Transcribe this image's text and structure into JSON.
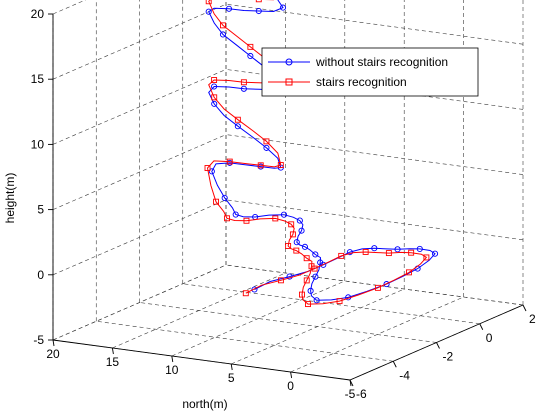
{
  "chart_data": {
    "type": "line3d",
    "title": "",
    "xlabel": "",
    "ylabel": "north(m)",
    "zlabel": "height(m)",
    "xlim": [
      -6,
      2
    ],
    "ylim": [
      -5,
      20
    ],
    "zlim": [
      -5,
      20
    ],
    "x_ticks": [
      "-6",
      "-4",
      "-2",
      "0",
      "2"
    ],
    "y_ticks": [
      "20",
      "15",
      "10",
      "5",
      "0",
      "-5"
    ],
    "z_ticks": [
      "20",
      "15",
      "10",
      "5",
      "0",
      "-5"
    ],
    "grid": true,
    "legend_position": "top-right",
    "series": [
      {
        "name": "without stairs recognition",
        "color": "#0000ff",
        "marker": "circle",
        "points": [
          [
            -5.2,
            4.5,
            0.2
          ],
          [
            -4.8,
            3.9,
            0.6
          ],
          [
            -4.4,
            3.0,
            0.8
          ],
          [
            -4.0,
            2.2,
            1.0
          ],
          [
            -3.5,
            1.8,
            1.2
          ],
          [
            -3.0,
            1.5,
            1.4
          ],
          [
            -2.6,
            1.2,
            1.6
          ],
          [
            -2.2,
            0.9,
            1.6
          ],
          [
            -1.8,
            0.6,
            1.4
          ],
          [
            -1.4,
            0.3,
            1.1
          ],
          [
            -1.0,
            0.1,
            0.8
          ],
          [
            -0.6,
            -0.2,
            0.6
          ],
          [
            -0.3,
            -0.5,
            0.4
          ],
          [
            -0.1,
            -1.0,
            0.2
          ],
          [
            -0.2,
            -1.6,
            0.1
          ],
          [
            -0.8,
            -2.2,
            0.1
          ],
          [
            -1.5,
            -2.5,
            0.0
          ],
          [
            -2.3,
            -2.7,
            0.0
          ],
          [
            -3.1,
            -2.8,
            0.0
          ],
          [
            -3.9,
            -2.6,
            0.0
          ],
          [
            -4.6,
            -2.3,
            0.0
          ],
          [
            -5.1,
            -1.8,
            0.1
          ],
          [
            -5.4,
            -1.1,
            0.2
          ],
          [
            -5.2,
            -0.3,
            0.3
          ],
          [
            -4.8,
            0.5,
            0.3
          ],
          [
            -4.3,
            1.3,
            0.4
          ],
          [
            -3.7,
            2.1,
            0.4
          ],
          [
            -3.1,
            2.9,
            0.4
          ],
          [
            -2.6,
            3.7,
            0.5
          ],
          [
            -2.2,
            4.4,
            0.5
          ],
          [
            -2.0,
            5.2,
            0.5
          ],
          [
            -1.8,
            6.0,
            0.6
          ],
          [
            -1.6,
            6.8,
            0.6
          ],
          [
            -1.4,
            7.6,
            0.5
          ],
          [
            -1.1,
            8.4,
            0.4
          ],
          [
            -0.6,
            9.2,
            0.4
          ],
          [
            0.0,
            10.0,
            0.3
          ],
          [
            0.5,
            10.8,
            0.3
          ],
          [
            0.8,
            11.6,
            0.3
          ],
          [
            1.0,
            12.5,
            0.3
          ],
          [
            1.0,
            13.3,
            0.4
          ],
          [
            0.8,
            14.2,
            0.4
          ],
          [
            0.6,
            15.0,
            0.3
          ],
          [
            0.6,
            16.0,
            0.2
          ],
          [
            0.8,
            17.0,
            0.1
          ],
          [
            1.2,
            18.0,
            0.2
          ],
          [
            1.5,
            19.2,
            0.6
          ],
          [
            1.6,
            20.0,
            1.4
          ],
          [
            1.4,
            20.1,
            2.6
          ],
          [
            1.1,
            19.2,
            3.5
          ],
          [
            0.8,
            17.5,
            4.0
          ],
          [
            0.5,
            15.5,
            4.3
          ],
          [
            0.2,
            13.8,
            4.6
          ],
          [
            -0.1,
            12.1,
            4.9
          ],
          [
            -0.3,
            11.2,
            5.2
          ],
          [
            0.0,
            12.0,
            5.6
          ],
          [
            0.3,
            13.5,
            6.0
          ],
          [
            0.6,
            15.2,
            6.4
          ],
          [
            0.9,
            17.0,
            6.8
          ],
          [
            1.2,
            18.7,
            7.2
          ],
          [
            1.4,
            19.9,
            7.8
          ],
          [
            1.2,
            20.0,
            8.8
          ],
          [
            0.9,
            19.0,
            9.6
          ],
          [
            0.6,
            17.2,
            10.0
          ],
          [
            0.3,
            15.4,
            10.3
          ],
          [
            0.0,
            13.6,
            10.7
          ],
          [
            -0.2,
            11.9,
            11.0
          ],
          [
            -0.3,
            11.1,
            11.4
          ],
          [
            0.0,
            12.1,
            11.8
          ],
          [
            0.3,
            13.7,
            12.2
          ],
          [
            0.6,
            15.4,
            12.6
          ],
          [
            0.9,
            17.1,
            13.0
          ],
          [
            1.2,
            18.8,
            13.4
          ],
          [
            1.4,
            19.9,
            14.0
          ],
          [
            1.2,
            20.0,
            15.0
          ],
          [
            0.9,
            19.0,
            15.6
          ],
          [
            0.6,
            17.2,
            16.0
          ],
          [
            0.3,
            15.4,
            16.3
          ],
          [
            0.0,
            13.6,
            16.7
          ],
          [
            -0.2,
            12.0,
            17.0
          ],
          [
            -0.2,
            11.2,
            17.4
          ],
          [
            0.1,
            12.3,
            17.8
          ],
          [
            0.4,
            13.9,
            18.1
          ],
          [
            0.7,
            15.5,
            18.4
          ],
          [
            1.0,
            17.2,
            18.6
          ]
        ]
      },
      {
        "name": "stairs recognition",
        "color": "#ff0000",
        "marker": "square",
        "points": [
          [
            -5.6,
            4.5,
            0.2
          ],
          [
            -5.2,
            3.9,
            0.6
          ],
          [
            -4.8,
            3.0,
            0.8
          ],
          [
            -4.4,
            2.2,
            1.0
          ],
          [
            -3.9,
            1.8,
            1.2
          ],
          [
            -3.4,
            1.5,
            1.4
          ],
          [
            -3.0,
            1.2,
            1.6
          ],
          [
            -2.6,
            0.9,
            1.6
          ],
          [
            -2.2,
            0.6,
            1.4
          ],
          [
            -1.8,
            0.3,
            1.1
          ],
          [
            -1.4,
            0.1,
            0.8
          ],
          [
            -1.0,
            -0.2,
            0.6
          ],
          [
            -0.7,
            -0.5,
            0.4
          ],
          [
            -0.5,
            -1.0,
            0.2
          ],
          [
            -0.6,
            -1.6,
            0.1
          ],
          [
            -1.2,
            -2.2,
            0.1
          ],
          [
            -1.9,
            -2.5,
            0.0
          ],
          [
            -2.7,
            -2.7,
            0.0
          ],
          [
            -3.5,
            -2.8,
            0.0
          ],
          [
            -4.3,
            -2.6,
            0.0
          ],
          [
            -5.0,
            -2.3,
            0.0
          ],
          [
            -5.5,
            -1.8,
            0.1
          ],
          [
            -5.8,
            -1.1,
            0.2
          ],
          [
            -5.6,
            -0.3,
            0.3
          ],
          [
            -5.2,
            0.5,
            0.3
          ],
          [
            -4.7,
            1.3,
            0.4
          ],
          [
            -4.1,
            2.1,
            0.4
          ],
          [
            -3.5,
            2.9,
            0.4
          ],
          [
            -3.0,
            3.7,
            0.5
          ],
          [
            -2.6,
            4.4,
            0.5
          ],
          [
            -2.4,
            5.2,
            0.5
          ],
          [
            -2.2,
            6.0,
            0.6
          ],
          [
            -2.0,
            6.8,
            0.6
          ],
          [
            -1.8,
            7.6,
            0.5
          ],
          [
            -1.5,
            8.4,
            0.4
          ],
          [
            -1.0,
            9.2,
            0.4
          ],
          [
            -0.4,
            10.0,
            0.3
          ],
          [
            0.1,
            10.8,
            0.3
          ],
          [
            0.4,
            11.6,
            0.3
          ],
          [
            0.6,
            12.5,
            0.3
          ],
          [
            0.6,
            13.3,
            0.4
          ],
          [
            0.4,
            14.2,
            0.4
          ],
          [
            0.2,
            15.0,
            0.3
          ],
          [
            0.2,
            16.0,
            0.2
          ],
          [
            0.4,
            17.0,
            0.1
          ],
          [
            0.8,
            18.0,
            0.2
          ],
          [
            1.1,
            19.2,
            0.6
          ],
          [
            1.3,
            20.0,
            1.6
          ],
          [
            1.2,
            20.1,
            3.0
          ],
          [
            1.0,
            19.2,
            3.8
          ],
          [
            0.8,
            17.5,
            4.1
          ],
          [
            0.5,
            15.5,
            4.4
          ],
          [
            0.2,
            13.8,
            4.7
          ],
          [
            -0.1,
            12.1,
            5.0
          ],
          [
            -0.3,
            11.2,
            5.4
          ],
          [
            0.0,
            12.0,
            6.0
          ],
          [
            0.3,
            13.5,
            6.5
          ],
          [
            0.6,
            15.2,
            6.9
          ],
          [
            0.9,
            17.0,
            7.3
          ],
          [
            1.2,
            18.7,
            7.7
          ],
          [
            1.4,
            19.9,
            8.3
          ],
          [
            1.2,
            20.0,
            9.4
          ],
          [
            0.9,
            19.0,
            10.1
          ],
          [
            0.6,
            17.2,
            10.5
          ],
          [
            0.3,
            15.4,
            10.8
          ],
          [
            0.0,
            13.6,
            11.2
          ],
          [
            -0.2,
            11.9,
            11.5
          ],
          [
            -0.3,
            11.1,
            11.9
          ],
          [
            0.0,
            12.1,
            12.4
          ],
          [
            0.3,
            13.7,
            12.9
          ],
          [
            0.6,
            15.4,
            13.3
          ],
          [
            0.9,
            17.1,
            13.7
          ],
          [
            1.2,
            18.8,
            14.1
          ],
          [
            1.4,
            19.9,
            14.7
          ],
          [
            1.2,
            20.0,
            15.8
          ],
          [
            0.9,
            19.0,
            16.5
          ],
          [
            0.6,
            17.2,
            16.9
          ],
          [
            0.3,
            15.4,
            17.2
          ],
          [
            0.0,
            13.6,
            17.6
          ],
          [
            -0.2,
            12.0,
            17.9
          ],
          [
            -0.2,
            11.2,
            18.3
          ],
          [
            0.1,
            12.3,
            18.8
          ],
          [
            0.4,
            13.9,
            19.2
          ],
          [
            0.7,
            15.5,
            19.5
          ],
          [
            1.0,
            17.2,
            19.8
          ]
        ]
      }
    ]
  }
}
